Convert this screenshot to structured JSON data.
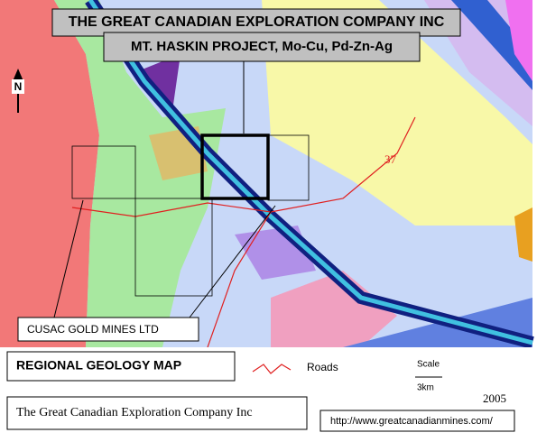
{
  "header": {
    "company": "THE GREAT CANADIAN EXPLORATION COMPANY INC",
    "project": "MT. HASKIN PROJECT, Mo-Cu, Pd-Zn-Ag"
  },
  "map": {
    "north": "N",
    "road_label": "37",
    "claim_label": "CUSAC GOLD MINES LTD"
  },
  "legend": {
    "title": "REGIONAL GEOLOGY MAP",
    "roads": "Roads",
    "scale": "Scale",
    "scale_distance": "3km",
    "year": "2005"
  },
  "footer": {
    "company": "The Great Canadian Exploration Company Inc",
    "url": "http://www.greatcanadianmines.com/"
  }
}
